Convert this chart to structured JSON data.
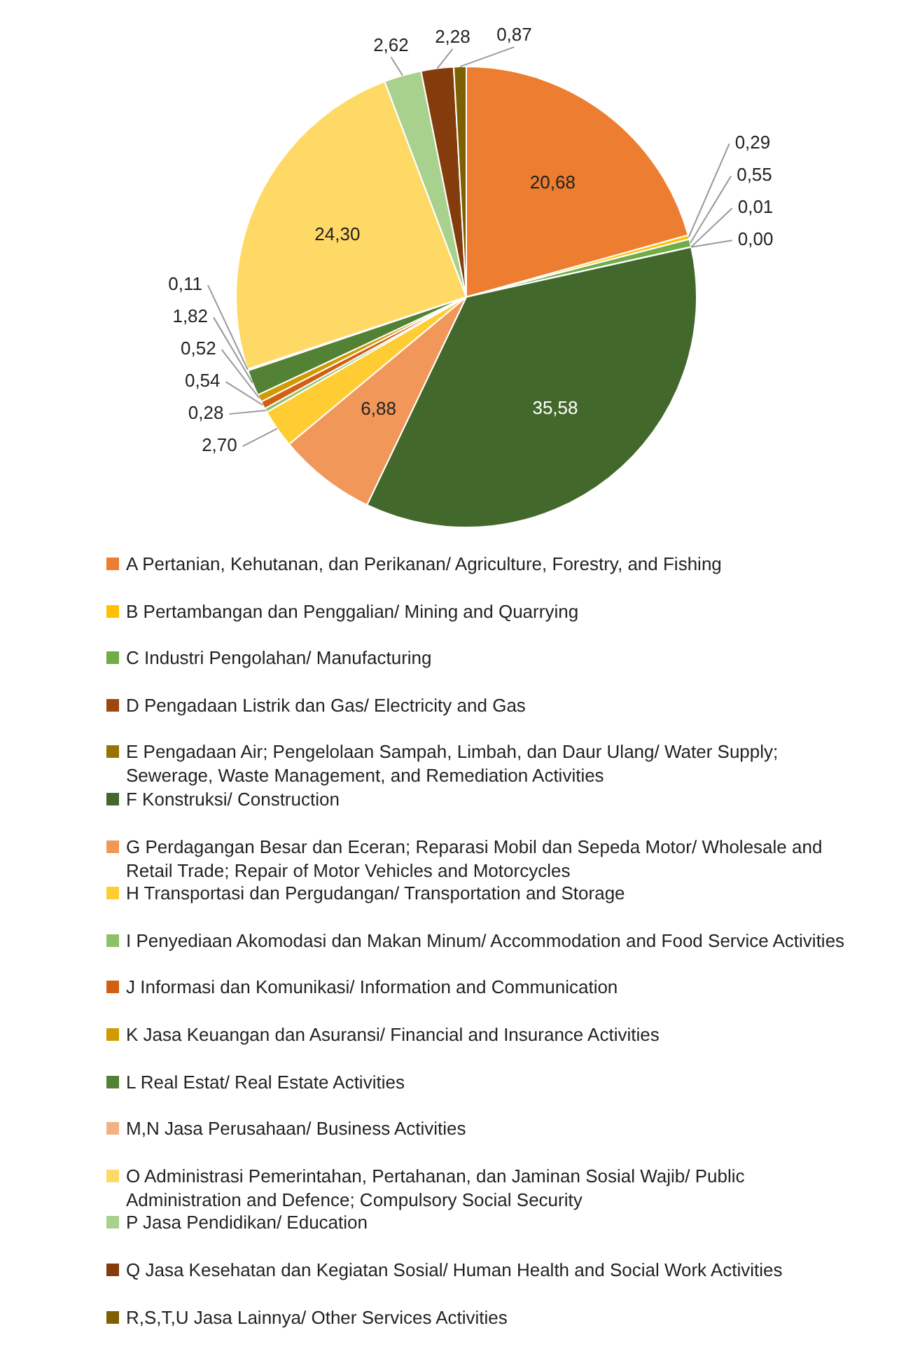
{
  "chart_data": {
    "type": "pie",
    "legend": "bottom",
    "categories": [
      "A  Pertanian, Kehutanan, dan Perikanan/ Agriculture, Forestry, and Fishing",
      "B  Pertambangan dan Penggalian/ Mining and Quarrying",
      "C  Industri Pengolahan/ Manufacturing",
      "D  Pengadaan Listrik dan Gas/ Electricity and Gas",
      "E  Pengadaan Air; Pengelolaan Sampah, Limbah, dan Daur Ulang/ Water Supply; Sewerage, Waste Management, and Remediation Activities",
      "F  Konstruksi/ Construction",
      "G  Perdagangan Besar dan Eceran; Reparasi Mobil dan Sepeda Motor/ Wholesale and Retail Trade; Repair of Motor Vehicles and Motorcycles",
      "H  Transportasi dan Pergudangan/ Transportation and Storage",
      "I  Penyediaan Akomodasi dan Makan Minum/ Accommodation and Food Service Activities",
      "J  Informasi dan Komunikasi/ Information and Communication",
      "K  Jasa Keuangan dan Asuransi/ Financial and Insurance Activities",
      "L  Real Estat/ Real Estate Activities",
      "M,N  Jasa Perusahaan/ Business Activities",
      "O  Administrasi Pemerintahan, Pertahanan, dan Jaminan Sosial Wajib/ Public Administration and Defence; Compulsory Social Security",
      "P  Jasa Pendidikan/ Education",
      "Q  Jasa Kesehatan dan Kegiatan Sosial/ Human Health and Social Work Activities",
      "R,S,T,U  Jasa Lainnya/ Other Services Activities"
    ],
    "values": [
      20.68,
      0.29,
      0.55,
      0.01,
      0.0,
      35.58,
      6.88,
      2.7,
      0.28,
      0.54,
      0.52,
      1.82,
      0.11,
      24.3,
      2.62,
      2.28,
      0.87
    ],
    "value_labels": [
      "20,68",
      "0,29",
      "0,55",
      "0,01",
      "0,00",
      "35,58",
      "6,88",
      "2,70",
      "0,28",
      "0,54",
      "0,52",
      "1,82",
      "0,11",
      "24,30",
      "2,62",
      "2,28",
      "0,87"
    ],
    "colors": [
      "#ed7d31",
      "#ffc000",
      "#70ad47",
      "#9e480e",
      "#997300",
      "#43682b",
      "#f1975a",
      "#ffcd33",
      "#8cc168",
      "#d26012",
      "#d09a00",
      "#548235",
      "#f4b183",
      "#ffd966",
      "#a9d18e",
      "#843c0c",
      "#7f6000"
    ]
  }
}
